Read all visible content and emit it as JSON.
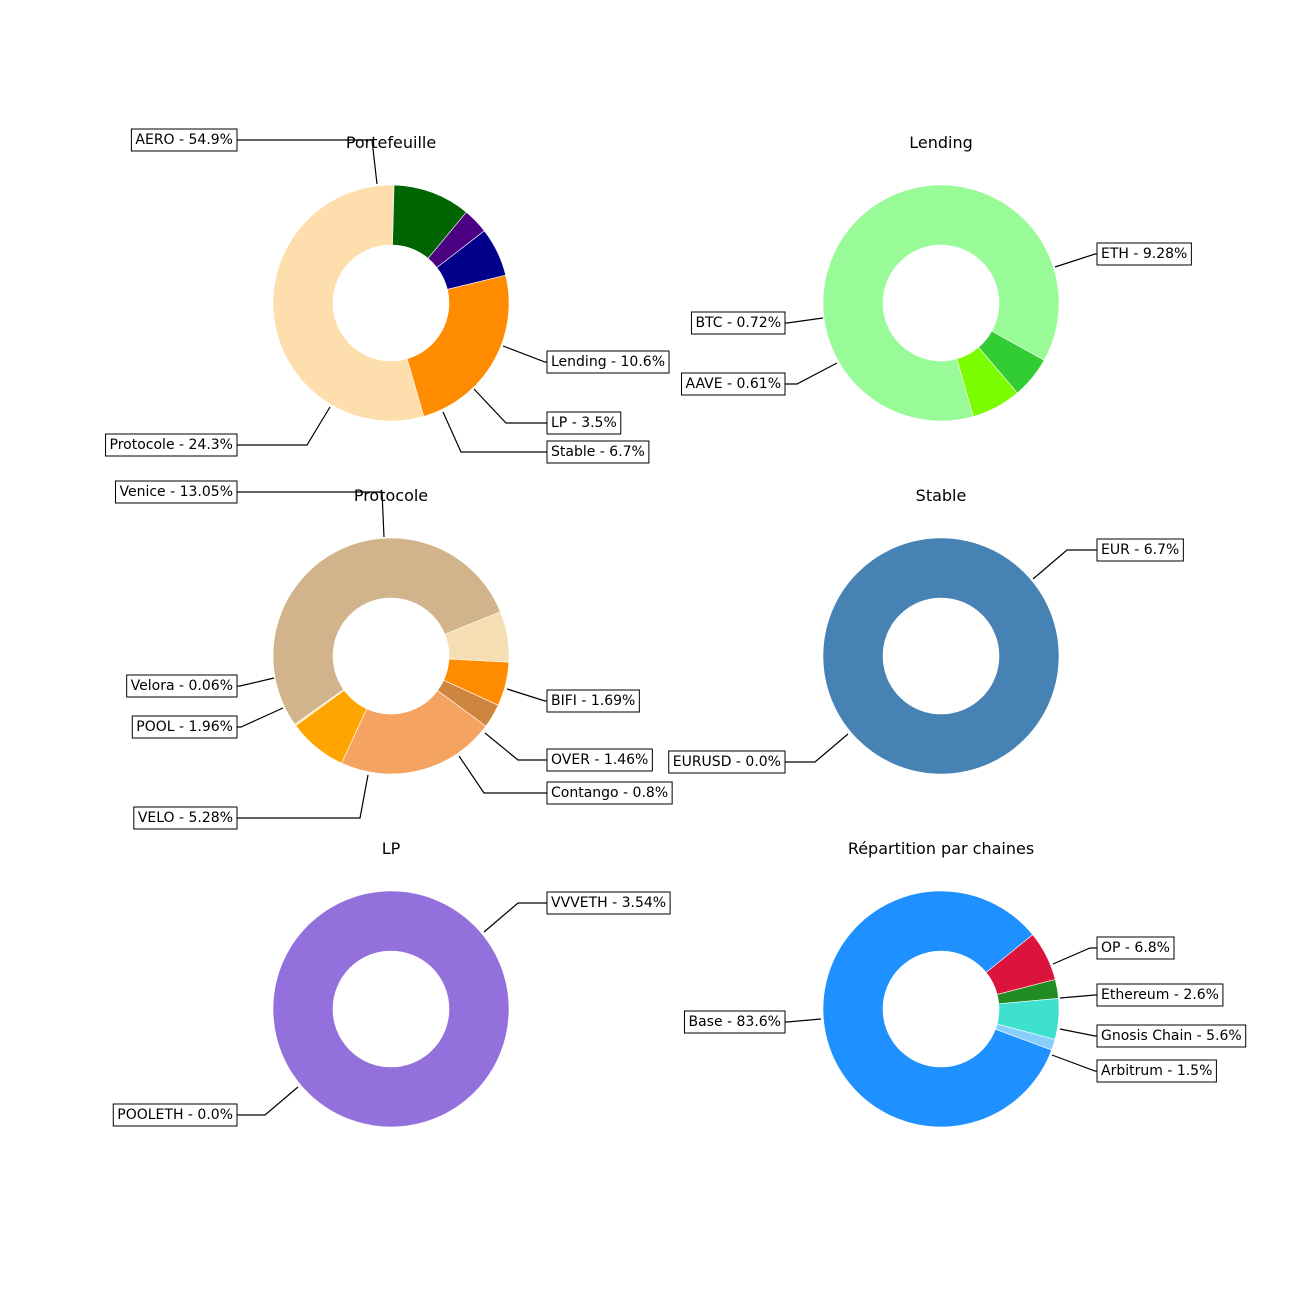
{
  "chart_data": [
    {
      "type": "pie",
      "title": "Portefeuille",
      "start_angle_deg": 88.5,
      "slices": [
        {
          "label": "AERO - 54.9%",
          "value": 54.9,
          "color": "#FFDEAD"
        },
        {
          "label": "Protocole - 24.3%",
          "value": 24.3,
          "color": "#FF8C00"
        },
        {
          "label": "Stable - 6.7%",
          "value": 6.7,
          "color": "#00008B"
        },
        {
          "label": "LP - 3.5%",
          "value": 3.5,
          "color": "#4B0082"
        },
        {
          "label": "Lending - 10.6%",
          "value": 10.6,
          "color": "#006400"
        }
      ]
    },
    {
      "type": "pie",
      "title": "Lending",
      "start_angle_deg": -29,
      "slices": [
        {
          "label": "ETH - 9.28%",
          "value": 9.28,
          "color": "#98FB98"
        },
        {
          "label": "BTC - 0.72%",
          "value": 0.72,
          "color": "#7CFC00"
        },
        {
          "label": "AAVE - 0.61%",
          "value": 0.61,
          "color": "#32CD32"
        }
      ]
    },
    {
      "type": "pie",
      "title": "Protocole",
      "start_angle_deg": -3,
      "slices": [
        {
          "label": "BIFI - 1.69%",
          "value": 1.69,
          "color": "#F5DEB3"
        },
        {
          "label": "Venice - 13.05%",
          "value": 13.05,
          "color": "#D2B48C"
        },
        {
          "label": "Velora - 0.06%",
          "value": 0.06,
          "color": "#FFE4B5"
        },
        {
          "label": "POOL - 1.96%",
          "value": 1.96,
          "color": "#FFA500"
        },
        {
          "label": "VELO - 5.28%",
          "value": 5.28,
          "color": "#F4A460"
        },
        {
          "label": "Contango - 0.8%",
          "value": 0.8,
          "color": "#CD853F"
        },
        {
          "label": "OVER - 1.46%",
          "value": 1.46,
          "color": "#FF8C00"
        }
      ]
    },
    {
      "type": "pie",
      "title": "Stable",
      "start_angle_deg": 44,
      "slices": [
        {
          "label": "EUR - 6.7%",
          "value": 6.7,
          "color": "#4682B4"
        },
        {
          "label": "EURUSD - 0.0%",
          "value": 0.0,
          "color": "#4682B4"
        }
      ]
    },
    {
      "type": "pie",
      "title": "LP",
      "start_angle_deg": 44,
      "slices": [
        {
          "label": "VVVETH - 3.54%",
          "value": 3.54,
          "color": "#9370DB"
        },
        {
          "label": "POOLETH - 0.0%",
          "value": 0.0,
          "color": "#9370DB"
        }
      ]
    },
    {
      "type": "pie",
      "title": "Répartition par chaines",
      "start_angle_deg": 39,
      "slices": [
        {
          "label": "Base - 83.6%",
          "value": 83.6,
          "color": "#1E90FF"
        },
        {
          "label": "Arbitrum - 1.5%",
          "value": 1.5,
          "color": "#87CEFA"
        },
        {
          "label": "Gnosis Chain - 5.6%",
          "value": 5.6,
          "color": "#40E0D0"
        },
        {
          "label": "Ethereum - 2.6%",
          "value": 2.6,
          "color": "#228B22"
        },
        {
          "label": "OP - 6.8%",
          "value": 6.8,
          "color": "#DC143C"
        }
      ]
    }
  ]
}
